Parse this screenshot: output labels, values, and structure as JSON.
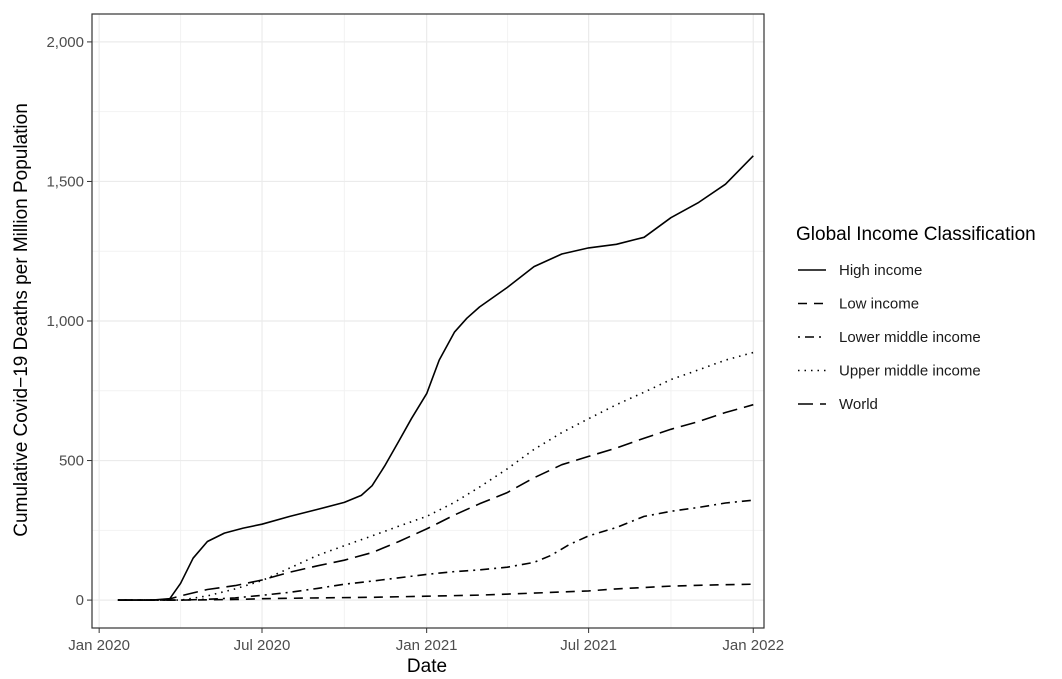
{
  "chart_data": {
    "type": "line",
    "title": "",
    "xlabel": "Date",
    "ylabel": "Cumulative Covid−19 Deaths per Million Population",
    "x_type": "date",
    "xlim": [
      "2019-12-24",
      "2022-01-13"
    ],
    "ylim": [
      -100,
      2100
    ],
    "x_ticks": [
      {
        "date": "2020-01-01",
        "label": "Jan 2020"
      },
      {
        "date": "2020-07-01",
        "label": "Jul 2020"
      },
      {
        "date": "2021-01-01",
        "label": "Jan 2021"
      },
      {
        "date": "2021-07-01",
        "label": "Jul 2021"
      },
      {
        "date": "2022-01-01",
        "label": "Jan 2022"
      }
    ],
    "y_ticks": [
      {
        "value": 0,
        "label": "0"
      },
      {
        "value": 500,
        "label": "500"
      },
      {
        "value": 1000,
        "label": "1,000"
      },
      {
        "value": 1500,
        "label": "1,500"
      },
      {
        "value": 2000,
        "label": "2,000"
      }
    ],
    "grid": true,
    "legend": {
      "title": "Global Income Classification",
      "position": "right"
    },
    "series": [
      {
        "name": "High income",
        "dash": "solid",
        "points": [
          [
            "2020-01-22",
            0
          ],
          [
            "2020-03-01",
            0
          ],
          [
            "2020-03-20",
            5
          ],
          [
            "2020-04-01",
            60
          ],
          [
            "2020-04-15",
            150
          ],
          [
            "2020-05-01",
            210
          ],
          [
            "2020-05-20",
            240
          ],
          [
            "2020-06-10",
            258
          ],
          [
            "2020-07-01",
            272
          ],
          [
            "2020-08-01",
            300
          ],
          [
            "2020-09-01",
            325
          ],
          [
            "2020-10-01",
            350
          ],
          [
            "2020-10-20",
            375
          ],
          [
            "2020-11-01",
            410
          ],
          [
            "2020-11-15",
            480
          ],
          [
            "2020-12-01",
            570
          ],
          [
            "2020-12-15",
            650
          ],
          [
            "2021-01-01",
            740
          ],
          [
            "2021-01-15",
            860
          ],
          [
            "2021-02-01",
            960
          ],
          [
            "2021-02-15",
            1010
          ],
          [
            "2021-03-01",
            1050
          ],
          [
            "2021-04-01",
            1120
          ],
          [
            "2021-05-01",
            1195
          ],
          [
            "2021-06-01",
            1240
          ],
          [
            "2021-07-01",
            1262
          ],
          [
            "2021-08-01",
            1275
          ],
          [
            "2021-09-01",
            1300
          ],
          [
            "2021-10-01",
            1370
          ],
          [
            "2021-11-01",
            1425
          ],
          [
            "2021-12-01",
            1490
          ],
          [
            "2022-01-01",
            1592
          ]
        ]
      },
      {
        "name": "Low income",
        "dash": "dashed",
        "points": [
          [
            "2020-01-22",
            0
          ],
          [
            "2020-04-01",
            0
          ],
          [
            "2020-06-01",
            2
          ],
          [
            "2020-07-01",
            5
          ],
          [
            "2020-09-01",
            8
          ],
          [
            "2020-11-01",
            10
          ],
          [
            "2021-01-01",
            14
          ],
          [
            "2021-03-01",
            18
          ],
          [
            "2021-05-01",
            25
          ],
          [
            "2021-07-01",
            33
          ],
          [
            "2021-08-01",
            40
          ],
          [
            "2021-09-01",
            45
          ],
          [
            "2021-10-01",
            50
          ],
          [
            "2021-11-01",
            53
          ],
          [
            "2021-12-01",
            55
          ],
          [
            "2022-01-01",
            57
          ]
        ]
      },
      {
        "name": "Lower middle income",
        "dash": "dotdash",
        "points": [
          [
            "2020-01-22",
            0
          ],
          [
            "2020-04-01",
            0
          ],
          [
            "2020-05-01",
            3
          ],
          [
            "2020-06-01",
            8
          ],
          [
            "2020-07-01",
            17
          ],
          [
            "2020-08-01",
            28
          ],
          [
            "2020-09-01",
            42
          ],
          [
            "2020-10-01",
            57
          ],
          [
            "2020-11-01",
            68
          ],
          [
            "2020-12-01",
            80
          ],
          [
            "2021-01-01",
            92
          ],
          [
            "2021-02-01",
            102
          ],
          [
            "2021-03-01",
            108
          ],
          [
            "2021-04-01",
            118
          ],
          [
            "2021-05-01",
            135
          ],
          [
            "2021-05-20",
            160
          ],
          [
            "2021-06-10",
            200
          ],
          [
            "2021-07-01",
            230
          ],
          [
            "2021-08-01",
            260
          ],
          [
            "2021-09-01",
            300
          ],
          [
            "2021-10-01",
            318
          ],
          [
            "2021-11-01",
            332
          ],
          [
            "2021-12-01",
            348
          ],
          [
            "2022-01-01",
            358
          ]
        ]
      },
      {
        "name": "Upper middle income",
        "dash": "dotted",
        "points": [
          [
            "2020-01-22",
            0
          ],
          [
            "2020-04-01",
            0
          ],
          [
            "2020-05-01",
            15
          ],
          [
            "2020-06-01",
            40
          ],
          [
            "2020-07-01",
            70
          ],
          [
            "2020-08-01",
            115
          ],
          [
            "2020-09-01",
            160
          ],
          [
            "2020-10-01",
            195
          ],
          [
            "2020-11-01",
            230
          ],
          [
            "2020-12-01",
            265
          ],
          [
            "2021-01-01",
            300
          ],
          [
            "2021-02-01",
            350
          ],
          [
            "2021-03-01",
            405
          ],
          [
            "2021-04-01",
            470
          ],
          [
            "2021-05-01",
            540
          ],
          [
            "2021-06-01",
            600
          ],
          [
            "2021-07-01",
            650
          ],
          [
            "2021-08-01",
            700
          ],
          [
            "2021-09-01",
            745
          ],
          [
            "2021-10-01",
            790
          ],
          [
            "2021-11-01",
            825
          ],
          [
            "2021-12-01",
            860
          ],
          [
            "2022-01-01",
            887
          ]
        ]
      },
      {
        "name": "World",
        "dash": "longdash",
        "points": [
          [
            "2020-01-22",
            0
          ],
          [
            "2020-03-15",
            0
          ],
          [
            "2020-04-01",
            15
          ],
          [
            "2020-05-01",
            38
          ],
          [
            "2020-06-01",
            52
          ],
          [
            "2020-07-01",
            72
          ],
          [
            "2020-08-01",
            100
          ],
          [
            "2020-09-01",
            123
          ],
          [
            "2020-10-01",
            143
          ],
          [
            "2020-11-01",
            170
          ],
          [
            "2020-12-01",
            210
          ],
          [
            "2021-01-01",
            255
          ],
          [
            "2021-02-01",
            305
          ],
          [
            "2021-03-01",
            345
          ],
          [
            "2021-04-01",
            385
          ],
          [
            "2021-05-01",
            438
          ],
          [
            "2021-06-01",
            485
          ],
          [
            "2021-07-01",
            515
          ],
          [
            "2021-08-01",
            545
          ],
          [
            "2021-09-01",
            580
          ],
          [
            "2021-10-01",
            612
          ],
          [
            "2021-11-01",
            640
          ],
          [
            "2021-12-01",
            672
          ],
          [
            "2022-01-01",
            700
          ]
        ]
      }
    ]
  }
}
